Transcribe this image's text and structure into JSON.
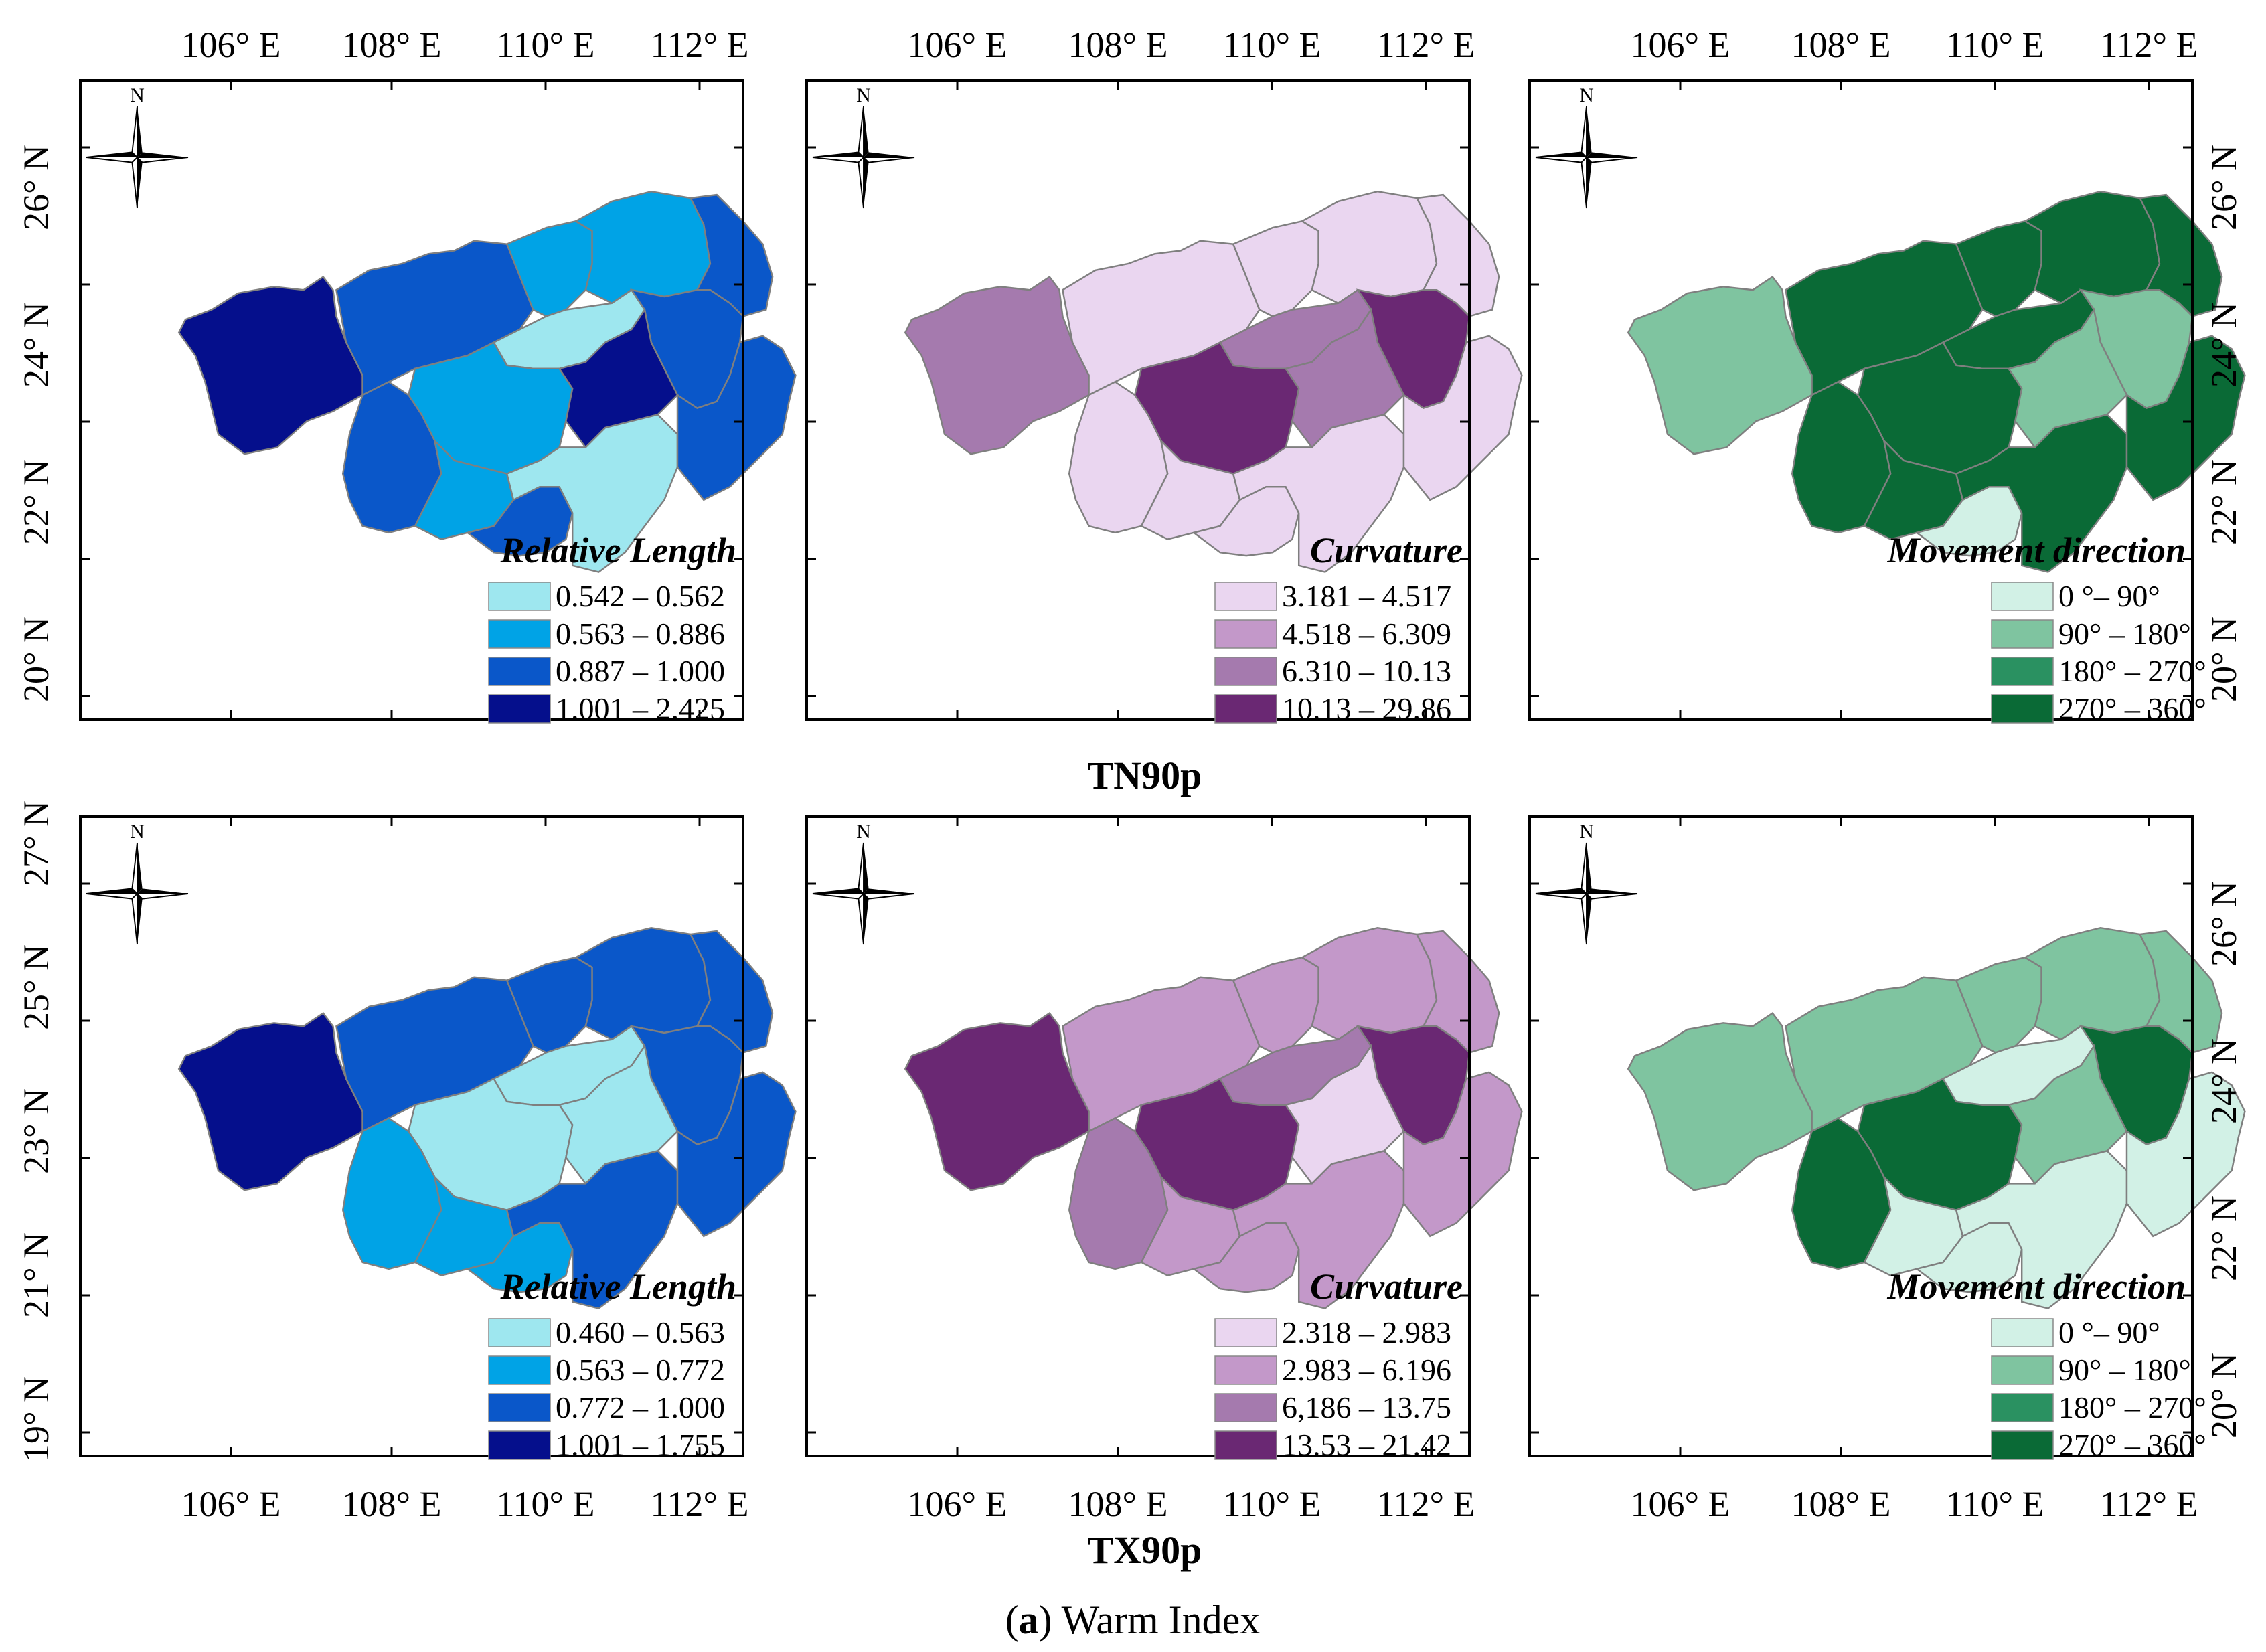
{
  "caption": {
    "letter": "a",
    "text": " Warm Index"
  },
  "rows": [
    {
      "label": "TN90p",
      "panels": [
        {
          "kind": "relative-length",
          "legend_title": "Relative Length",
          "classes": [
            {
              "label": "0.542 – 0.562",
              "color": "#9ee7ef"
            },
            {
              "label": "0.563 – 0.886",
              "color": "#00a3e6"
            },
            {
              "label": "0.887 – 1.000",
              "color": "#0a57c9"
            },
            {
              "label": "1.001 – 2.425",
              "color": "#050f8c"
            }
          ],
          "region_class": [
            3,
            2,
            1,
            1,
            2,
            0,
            1,
            2,
            3,
            2,
            1,
            2,
            0,
            2
          ]
        },
        {
          "kind": "curvature",
          "legend_title": "Curvature",
          "classes": [
            {
              "label": "3.181 – 4.517",
              "color": "#ead6f0"
            },
            {
              "label": "4.518 – 6.309",
              "color": "#c398c9"
            },
            {
              "label": "6.310 – 10.13",
              "color": "#a57aae"
            },
            {
              "label": "10.13 – 29.86",
              "color": "#6a2873"
            }
          ],
          "region_class": [
            2,
            0,
            0,
            0,
            0,
            2,
            3,
            3,
            2,
            0,
            0,
            0,
            0,
            0
          ]
        },
        {
          "kind": "movement",
          "legend_title": "Movement direction",
          "classes": [
            {
              "label": "0 °– 90°",
              "color": "#d2f1e6"
            },
            {
              "label": "90° – 180°",
              "color": "#7fc4a0"
            },
            {
              "label": "180° – 270°",
              "color": "#2a9161"
            },
            {
              "label": "270° – 360°",
              "color": "#0a6a36"
            }
          ],
          "region_class": [
            1,
            3,
            3,
            3,
            3,
            3,
            3,
            1,
            1,
            3,
            3,
            0,
            3,
            3
          ]
        }
      ]
    },
    {
      "label": "TX90p",
      "panels": [
        {
          "kind": "relative-length",
          "legend_title": "Relative Length",
          "classes": [
            {
              "label": "0.460 – 0.563",
              "color": "#9ee7ef"
            },
            {
              "label": "0.563 – 0.772",
              "color": "#00a3e6"
            },
            {
              "label": "0.772 – 1.000",
              "color": "#0a57c9"
            },
            {
              "label": "1.001 – 1.755",
              "color": "#050f8c"
            }
          ],
          "region_class": [
            3,
            2,
            2,
            2,
            2,
            0,
            0,
            2,
            0,
            1,
            1,
            1,
            2,
            2
          ]
        },
        {
          "kind": "curvature",
          "legend_title": "Curvature",
          "classes": [
            {
              "label": "2.318 – 2.983",
              "color": "#ead6f0"
            },
            {
              "label": "2.983 – 6.196",
              "color": "#c398c9"
            },
            {
              "label": "6,186 – 13.75",
              "color": "#a57aae"
            },
            {
              "label": "13.53 – 21.42",
              "color": "#6a2873"
            }
          ],
          "region_class": [
            3,
            1,
            1,
            1,
            1,
            2,
            3,
            3,
            0,
            2,
            1,
            1,
            1,
            1
          ]
        },
        {
          "kind": "movement",
          "legend_title": "Movement direction",
          "classes": [
            {
              "label": "0 °– 90°",
              "color": "#d2f1e6"
            },
            {
              "label": "90° – 180°",
              "color": "#7fc4a0"
            },
            {
              "label": "180° – 270°",
              "color": "#2a9161"
            },
            {
              "label": "270° – 360°",
              "color": "#0a6a36"
            }
          ],
          "region_class": [
            1,
            1,
            1,
            1,
            1,
            0,
            3,
            3,
            1,
            3,
            0,
            0,
            0,
            0
          ]
        }
      ]
    }
  ],
  "axes": {
    "lon_top": [
      "106° E",
      "108° E",
      "110° E",
      "112° E"
    ],
    "lon_bottom": [
      "106° E",
      "108° E",
      "110° E",
      "112° E"
    ],
    "lat_row1_left": [
      "26° N",
      "24° N",
      "22° N",
      "20° N"
    ],
    "lat_row2_left": [
      "27° N",
      "25° N",
      "23° N",
      "21° N",
      "19° N"
    ],
    "lat_right": [
      "26° N",
      "24° N",
      "22° N",
      "20° N"
    ]
  },
  "compass_label": "N"
}
